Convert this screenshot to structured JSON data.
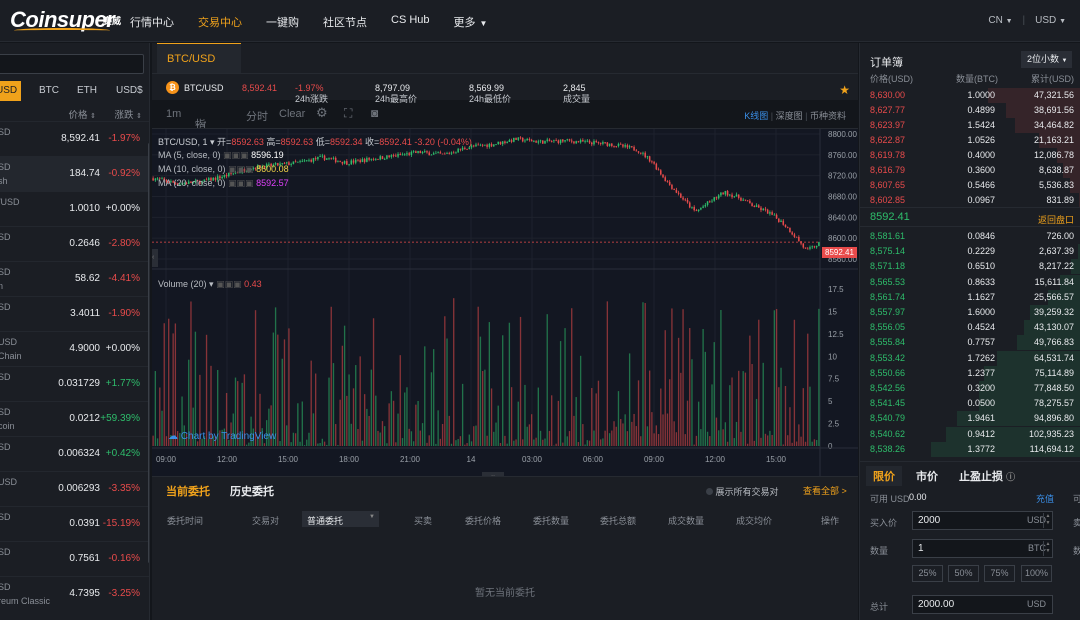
{
  "topbar": {
    "logo": "Coinsuper",
    "logo_sub": "赛威",
    "nav": [
      {
        "label": "行情中心",
        "active": false
      },
      {
        "label": "交易中心",
        "active": true
      },
      {
        "label": "一键购",
        "active": false
      },
      {
        "label": "社区节点",
        "active": false
      },
      {
        "label": "CS Hub",
        "active": false
      },
      {
        "label": "更多",
        "active": false
      }
    ],
    "lang": "CN",
    "currency": "USD"
  },
  "left": {
    "tabs": [
      "USD",
      "BTC",
      "ETH",
      "USD$"
    ],
    "col_price": "价格",
    "col_change": "涨跌",
    "rows": [
      {
        "q1": "SD",
        "q2": "",
        "price": "8,592.41",
        "change": "-1.97%",
        "dir": "dn"
      },
      {
        "q1": "SD",
        "q2": "sh",
        "price": "184.74",
        "change": "-0.92%",
        "dir": "dn"
      },
      {
        "q1": "/USD",
        "q2": "",
        "price": "1.0010",
        "change": "+0.00%",
        "dir": "ne"
      },
      {
        "q1": "SD",
        "q2": "",
        "price": "0.2646",
        "change": "-2.80%",
        "dir": "dn"
      },
      {
        "q1": "SD",
        "q2": "n",
        "price": "58.62",
        "change": "-4.41%",
        "dir": "dn"
      },
      {
        "q1": "SD",
        "q2": "",
        "price": "3.4011",
        "change": "-1.90%",
        "dir": "dn"
      },
      {
        "q1": "USD",
        "q2": "Chain",
        "price": "4.9000",
        "change": "+0.00%",
        "dir": "ne"
      },
      {
        "q1": "SD",
        "q2": "",
        "price": "0.031729",
        "change": "+1.77%",
        "dir": "up"
      },
      {
        "q1": "SD",
        "q2": "coin",
        "price": "0.0212",
        "change": "+59.39%",
        "dir": "up"
      },
      {
        "q1": "SD",
        "q2": "",
        "price": "0.006324",
        "change": "+0.42%",
        "dir": "up"
      },
      {
        "q1": "USD",
        "q2": "",
        "price": "0.006293",
        "change": "-3.35%",
        "dir": "dn"
      },
      {
        "q1": "SD",
        "q2": "",
        "price": "0.0391",
        "change": "-15.19%",
        "dir": "dn"
      },
      {
        "q1": "SD",
        "q2": "",
        "price": "0.7561",
        "change": "-0.16%",
        "dir": "dn"
      },
      {
        "q1": "SD",
        "q2": "reum Classic",
        "price": "4.7395",
        "change": "-3.25%",
        "dir": "dn"
      }
    ]
  },
  "center": {
    "tab": "BTC/USD",
    "ticker": {
      "pair": "BTC/USD",
      "price": "8,592.41",
      "change_label": "24h涨跌",
      "change": "-1.97%",
      "high_label": "24h最高价",
      "high": "8,797.09",
      "low_label": "24h最低价",
      "low": "8,569.99",
      "vol_label": "成交量",
      "vol": "2,845"
    },
    "toolbar": {
      "interval": "1m",
      "indicators": "指标",
      "timeshare": "分时",
      "clear": "Clear",
      "view_kline": "K线图",
      "view_depth": "深度图",
      "view_info": "币种资料"
    },
    "chart_legend": {
      "symbol": "BTC/USD, 1",
      "open_label": "开=",
      "open": "8592.63",
      "high_label": "高=",
      "high": "8592.63",
      "low_label": "低=",
      "low": "8592.34",
      "close_label": "收=",
      "close": "8592.41",
      "delta": "-3.20 (-0.04%)",
      "ma5_label": "MA (5, close, 0)",
      "ma5": "8596.19",
      "ma10_label": "MA (10, close, 0)",
      "ma10": "8600.08",
      "ma20_label": "MA (20, close, 0)",
      "ma20": "8592.57",
      "vol_label": "Volume (20)",
      "vol": "0.43",
      "price_tag": "8592.41",
      "watermark": "Chart by TradingView"
    },
    "colors": {
      "up": "#2ebd6b",
      "down": "#e84b4b",
      "accent": "#f0a21b",
      "ma5": "#ffffff",
      "ma10": "#f5d547",
      "ma20": "#e040fb"
    },
    "bottom": {
      "tab_open": "当前委托",
      "tab_history": "历史委托",
      "show_all": "展示所有交易对",
      "view_all": "查看全部 >",
      "cols": [
        "委托时间",
        "交易对",
        "普通委托",
        "买卖",
        "委托价格",
        "委托数量",
        "委托总额",
        "成交数量",
        "成交均价",
        "操作"
      ],
      "empty": "暂无当前委托"
    }
  },
  "chart_data": {
    "type": "candlestick",
    "price_axis": [
      8800.0,
      8760.0,
      8720.0,
      8680.0,
      8640.0,
      8600.0,
      8560.0
    ],
    "volume_axis": [
      17.5,
      15,
      12.5,
      10,
      7.5,
      5,
      2.5,
      0
    ],
    "time_axis": [
      "09:00",
      "12:00",
      "15:00",
      "18:00",
      "21:00",
      "14",
      "03:00",
      "06:00",
      "09:00",
      "12:00",
      "15:00"
    ],
    "price_path": [
      [
        0,
        8715
      ],
      [
        5,
        8705
      ],
      [
        10,
        8708
      ],
      [
        15,
        8720
      ],
      [
        20,
        8735
      ],
      [
        25,
        8740
      ],
      [
        30,
        8745
      ],
      [
        35,
        8755
      ],
      [
        40,
        8745
      ],
      [
        45,
        8752
      ],
      [
        50,
        8758
      ],
      [
        55,
        8765
      ],
      [
        60,
        8760
      ],
      [
        65,
        8775
      ],
      [
        70,
        8780
      ],
      [
        75,
        8790
      ],
      [
        80,
        8785
      ],
      [
        85,
        8787
      ],
      [
        90,
        8784
      ],
      [
        95,
        8780
      ],
      [
        100,
        8770
      ],
      [
        103,
        8748
      ],
      [
        106,
        8710
      ],
      [
        109,
        8680
      ],
      [
        112,
        8650
      ],
      [
        115,
        8670
      ],
      [
        118,
        8688
      ],
      [
        121,
        8678
      ],
      [
        124,
        8662
      ],
      [
        127,
        8650
      ],
      [
        130,
        8630
      ],
      [
        133,
        8600
      ],
      [
        135,
        8575
      ],
      [
        138,
        8592
      ]
    ]
  },
  "orderbook": {
    "title": "订单簿",
    "decimals": "2位小数",
    "cols": [
      "价格(USD)",
      "数量(BTC)",
      "累计(USD)"
    ],
    "asks": [
      [
        "8,630.00",
        "1.0000",
        "47,321.56"
      ],
      [
        "8,627.77",
        "0.4899",
        "38,691.56"
      ],
      [
        "8,623.97",
        "1.5424",
        "34,464.82"
      ],
      [
        "8,622.87",
        "1.0526",
        "21,163.21"
      ],
      [
        "8,619.78",
        "0.4000",
        "12,086.78"
      ],
      [
        "8,616.79",
        "0.3600",
        "8,638.87"
      ],
      [
        "8,607.65",
        "0.5466",
        "5,536.83"
      ],
      [
        "8,602.85",
        "0.0967",
        "831.89"
      ]
    ],
    "last": "8592.41",
    "back": "返回盘口",
    "bids": [
      [
        "8,581.61",
        "0.0846",
        "726.00"
      ],
      [
        "8,575.14",
        "0.2229",
        "2,637.39"
      ],
      [
        "8,571.18",
        "0.6510",
        "8,217.22"
      ],
      [
        "8,565.53",
        "0.8633",
        "15,611.84"
      ],
      [
        "8,561.74",
        "1.1627",
        "25,566.57"
      ],
      [
        "8,557.97",
        "1.6000",
        "39,259.32"
      ],
      [
        "8,556.05",
        "0.4524",
        "43,130.07"
      ],
      [
        "8,555.84",
        "0.7757",
        "49,766.83"
      ],
      [
        "8,553.42",
        "1.7262",
        "64,531.74"
      ],
      [
        "8,550.66",
        "1.2377",
        "75,114.89"
      ],
      [
        "8,542.56",
        "0.3200",
        "77,848.50"
      ],
      [
        "8,541.45",
        "0.0500",
        "78,275.57"
      ],
      [
        "8,540.79",
        "1.9461",
        "94,896.80"
      ],
      [
        "8,540.62",
        "0.9412",
        "102,935.23"
      ],
      [
        "8,538.26",
        "1.3772",
        "114,694.12"
      ]
    ],
    "ask_depth": [
      0.42,
      0.34,
      0.3,
      0.19,
      0.11,
      0.08,
      0.05,
      0.01
    ],
    "bid_depth": [
      0.01,
      0.02,
      0.07,
      0.14,
      0.22,
      0.34,
      0.38,
      0.43,
      0.56,
      0.65,
      0.68,
      0.68,
      0.83,
      0.9,
      1.0
    ]
  },
  "order": {
    "tabs": [
      "限价",
      "市价",
      "止盈止损"
    ],
    "avail_label": "可用 USD",
    "avail": "0.00",
    "deposit": "充值",
    "buy_price_label": "买入价",
    "buy_price": "2000",
    "buy_price_unit": "USD",
    "qty_label": "数量",
    "qty": "1",
    "qty_unit": "BTC",
    "pcts": [
      "25%",
      "50%",
      "75%",
      "100%"
    ],
    "total_label": "总计",
    "total": "2000.00",
    "total_unit": "USD",
    "edge_avail": "可",
    "edge_sell": "卖",
    "edge_qty": "数"
  }
}
